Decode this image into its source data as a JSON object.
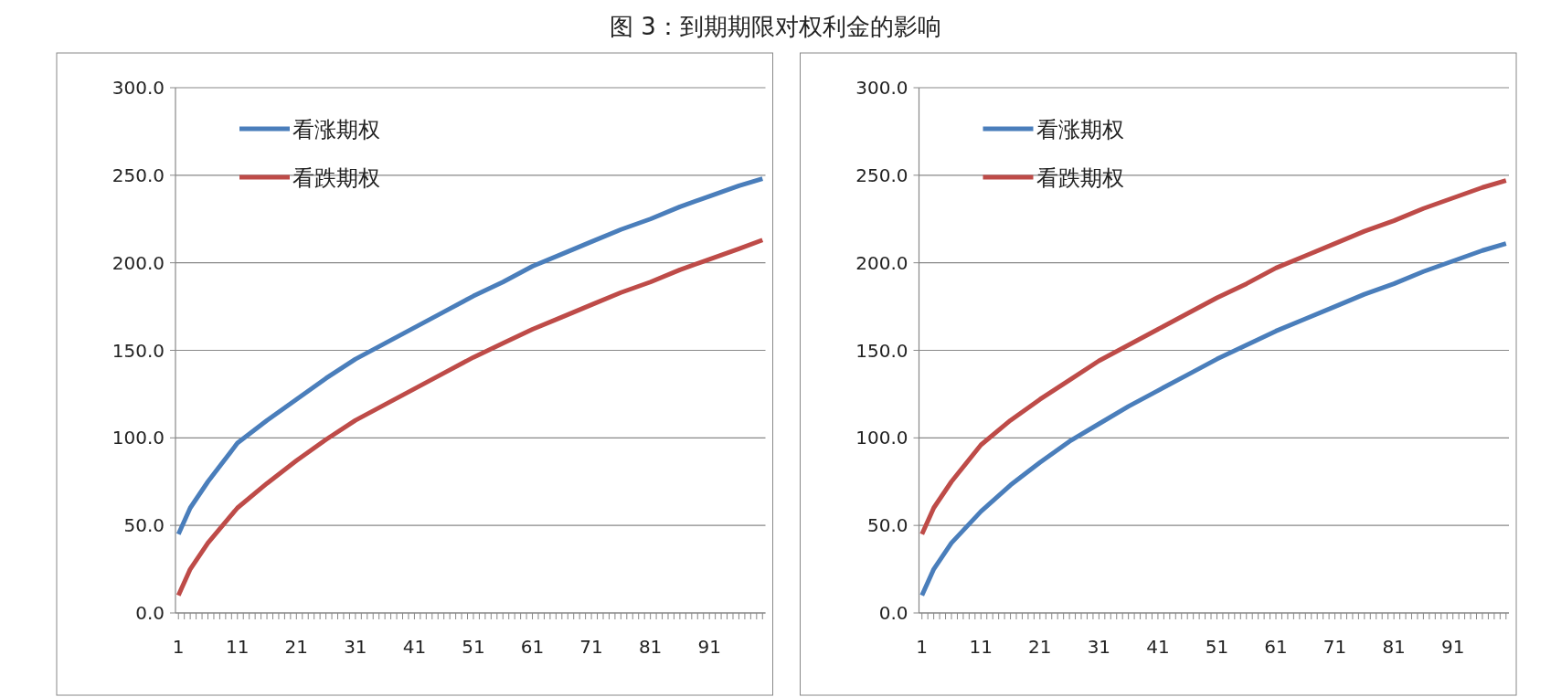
{
  "chart_data": [
    {
      "type": "line",
      "title": "图 3：到期期限对权利金的影响",
      "xlim": [
        0.5,
        100.5
      ],
      "xticks": [
        1,
        11,
        21,
        31,
        41,
        51,
        61,
        71,
        81,
        91
      ],
      "ylim": [
        0,
        300
      ],
      "yticks": [
        {
          "value": 0,
          "label": "0.0"
        },
        {
          "value": 50,
          "label": "50.0"
        },
        {
          "value": 100,
          "label": "100.0"
        },
        {
          "value": 150,
          "label": "150.0"
        },
        {
          "value": 200,
          "label": "200.0"
        },
        {
          "value": 250,
          "label": "250.0"
        },
        {
          "value": 300,
          "label": "300.0"
        }
      ],
      "grid": "y",
      "legend": "top left",
      "marker": "none",
      "line_style": "solid",
      "series": [
        {
          "name": "看涨期权",
          "color": "#4a7ebb",
          "x": [
            1,
            3,
            6,
            11,
            16,
            21,
            26,
            31,
            36,
            41,
            46,
            51,
            56,
            61,
            66,
            71,
            76,
            81,
            86,
            91,
            96,
            100
          ],
          "values": [
            45,
            60,
            75,
            97,
            110,
            122,
            134,
            145,
            154,
            163,
            172,
            181,
            189,
            198,
            205,
            212,
            219,
            225,
            232,
            238,
            244,
            248
          ]
        },
        {
          "name": "看跌期权",
          "color": "#be4b48",
          "x": [
            1,
            3,
            6,
            11,
            16,
            21,
            26,
            31,
            36,
            41,
            46,
            51,
            56,
            61,
            66,
            71,
            76,
            81,
            86,
            91,
            96,
            100
          ],
          "values": [
            10,
            25,
            40,
            60,
            74,
            87,
            99,
            110,
            119,
            128,
            137,
            146,
            154,
            162,
            169,
            176,
            183,
            189,
            196,
            202,
            208,
            213
          ]
        }
      ]
    },
    {
      "type": "line",
      "xlim": [
        0.5,
        100.5
      ],
      "xticks": [
        1,
        11,
        21,
        31,
        41,
        51,
        61,
        71,
        81,
        91
      ],
      "ylim": [
        0,
        300
      ],
      "yticks": [
        {
          "value": 0,
          "label": "0.0"
        },
        {
          "value": 50,
          "label": "50.0"
        },
        {
          "value": 100,
          "label": "100.0"
        },
        {
          "value": 150,
          "label": "150.0"
        },
        {
          "value": 200,
          "label": "200.0"
        },
        {
          "value": 250,
          "label": "250.0"
        },
        {
          "value": 300,
          "label": "300.0"
        }
      ],
      "grid": "y",
      "legend": "top left",
      "marker": "none",
      "line_style": "solid",
      "series": [
        {
          "name": "看涨期权",
          "color": "#4a7ebb",
          "x": [
            1,
            3,
            6,
            11,
            16,
            21,
            26,
            31,
            36,
            41,
            46,
            51,
            56,
            61,
            66,
            71,
            76,
            81,
            86,
            91,
            96,
            100
          ],
          "values": [
            10,
            25,
            40,
            58,
            73,
            86,
            98,
            108,
            118,
            127,
            136,
            145,
            153,
            161,
            168,
            175,
            182,
            188,
            195,
            201,
            207,
            211
          ]
        },
        {
          "name": "看跌期权",
          "color": "#be4b48",
          "x": [
            1,
            3,
            6,
            11,
            16,
            21,
            26,
            31,
            36,
            41,
            46,
            51,
            56,
            61,
            66,
            71,
            76,
            81,
            86,
            91,
            96,
            100
          ],
          "values": [
            45,
            60,
            75,
            96,
            110,
            122,
            133,
            144,
            153,
            162,
            171,
            180,
            188,
            197,
            204,
            211,
            218,
            224,
            231,
            237,
            243,
            247
          ]
        }
      ]
    }
  ]
}
